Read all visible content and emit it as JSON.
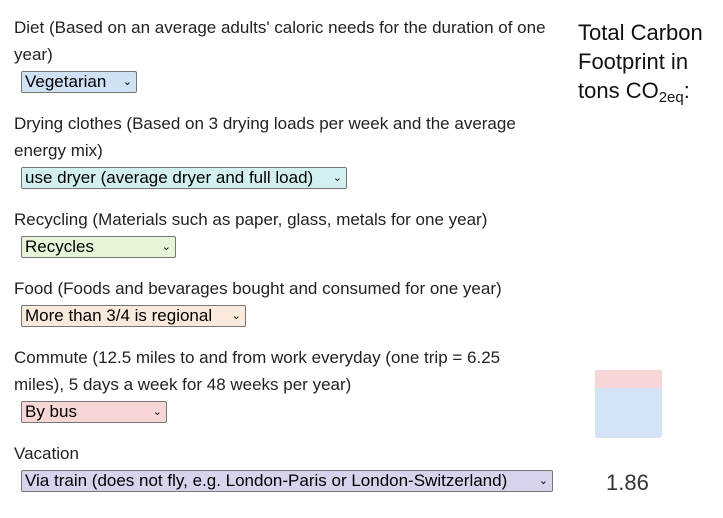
{
  "questions": [
    {
      "id": "diet",
      "label": "Diet (Based on an average adults' caloric needs for the duration of one year)",
      "selected": "Vegetarian",
      "color": "#cfe2f3"
    },
    {
      "id": "drying",
      "label": "Drying clothes (Based on 3 drying loads per week and the average energy mix)",
      "selected": "use dryer (average dryer and full load)",
      "color": "#d2f0ef"
    },
    {
      "id": "recycling",
      "label": "Recycling (Materials such as paper, glass, metals for one year)",
      "selected": "Recycles",
      "color": "#e6f5d8"
    },
    {
      "id": "food",
      "label": "Food (Foods and bevarages bought and consumed for one year)",
      "selected": "More than 3/4 is regional",
      "color": "#faeadc"
    },
    {
      "id": "commute",
      "label": "Commute (12.5 miles to and from work everyday (one trip = 6.25 miles), 5 days a week for 48 weeks per year)",
      "selected": "By bus",
      "color": "#f6d6d6"
    },
    {
      "id": "vacation",
      "label": "Vacation",
      "selected": "Via train (does not fly, e.g. London-Paris or London-Switzerland)",
      "color": "#d7d3ec"
    }
  ],
  "total": {
    "title_main": "Total Carbon Footprint in tons CO",
    "title_sub": "2eq",
    "title_suffix": ":",
    "value": "1.86",
    "segments": [
      {
        "color": "#f6d6d6",
        "fraction": 0.27
      },
      {
        "color": "#d4e4f6",
        "fraction": 0.73
      }
    ]
  }
}
